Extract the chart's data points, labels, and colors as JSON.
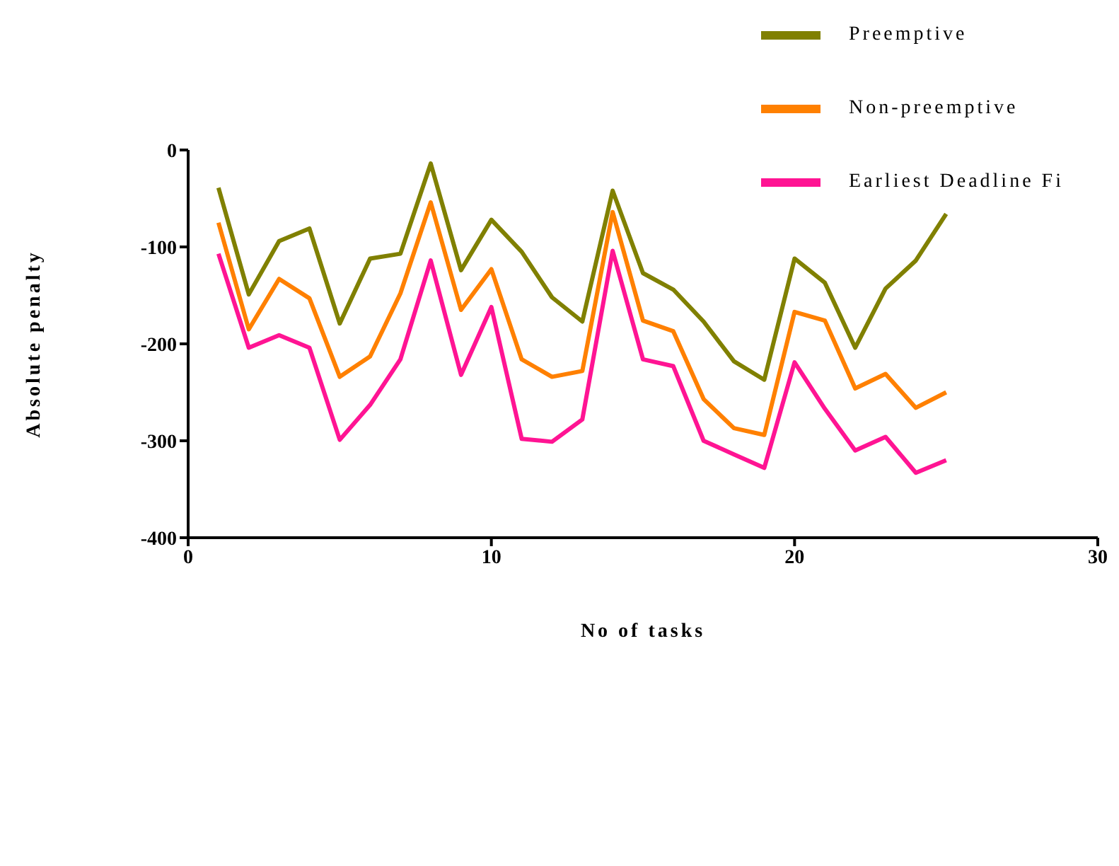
{
  "chart_data": {
    "type": "line",
    "xlabel": "No of tasks",
    "ylabel": "Absolute penalty",
    "x": [
      1,
      2,
      3,
      4,
      5,
      6,
      7,
      8,
      9,
      10,
      11,
      12,
      13,
      14,
      15,
      16,
      17,
      18,
      19,
      20,
      21,
      22,
      23,
      24,
      25
    ],
    "series": [
      {
        "name": "Preemptive",
        "color": "#808000",
        "values": [
          -39,
          -149,
          -94,
          -81,
          -179,
          -112,
          -107,
          -14,
          -124,
          -72,
          -105,
          -152,
          -177,
          -42,
          -127,
          -144,
          -177,
          -218,
          -237,
          -112,
          -137,
          -204,
          -143,
          -114,
          -66
        ]
      },
      {
        "name": "Non-preemptive",
        "color": "#ff8000",
        "values": [
          -75,
          -185,
          -133,
          -153,
          -234,
          -213,
          -148,
          -54,
          -165,
          -123,
          -216,
          -234,
          -228,
          -64,
          -176,
          -187,
          -257,
          -287,
          -294,
          -167,
          -176,
          -246,
          -231,
          -266,
          -250
        ]
      },
      {
        "name": "Earliest Deadline Fi",
        "color": "#ff1493",
        "values": [
          -107,
          -204,
          -191,
          -204,
          -299,
          -263,
          -216,
          -114,
          -232,
          -162,
          -298,
          -301,
          -278,
          -104,
          -216,
          -223,
          -300,
          -314,
          -328,
          -219,
          -267,
          -310,
          -296,
          -333,
          -320
        ]
      }
    ],
    "xlim": [
      0,
      30
    ],
    "xticks": [
      0,
      10,
      20,
      30
    ],
    "ylim": [
      -400,
      0
    ],
    "yticks": [
      -400,
      -300,
      -200,
      -100,
      0
    ],
    "grid": false,
    "legend": "top right",
    "marker": "none",
    "line_style": "solid"
  }
}
